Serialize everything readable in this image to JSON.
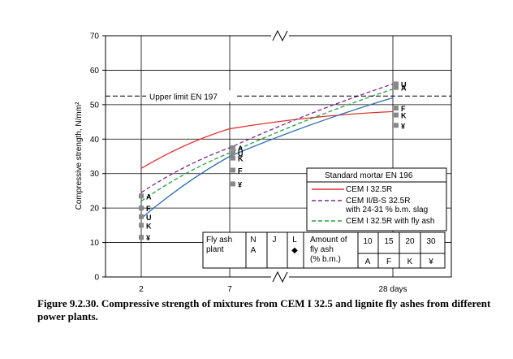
{
  "chart_data": {
    "type": "line",
    "ylabel": "Compressive strength, N/mm²",
    "ylim": [
      0,
      70
    ],
    "yticks": [
      0,
      10,
      20,
      30,
      40,
      50,
      60,
      70
    ],
    "x_ticks": [
      "2",
      "7",
      "28 days"
    ],
    "x_scale": "broken axis (time)",
    "grid": "horizontal lines at every 10 N/mm²; vertical lines at 2, 7, 28 days",
    "upper_limit": {
      "label": "Upper limit EN 197",
      "value": 52.5
    },
    "series": [
      {
        "name": "CEM I 32.5R",
        "style": "solid",
        "color": "#e03030",
        "points": [
          [
            2,
            31.5
          ],
          [
            7,
            43
          ],
          [
            28,
            48
          ]
        ]
      },
      {
        "name": "CEM II/B-S 32.5R with 24-31 % b.m. slag",
        "style": "dashed",
        "color": "#7a2a8a",
        "points": [
          [
            2,
            24.5
          ],
          [
            7,
            37.5
          ],
          [
            28,
            56
          ]
        ]
      },
      {
        "name": "CEM I 32.5R with fly ash",
        "style": "dashed",
        "color": "#22a040",
        "points": [
          [
            2,
            22
          ],
          [
            7,
            36
          ],
          [
            28,
            54.5
          ]
        ]
      },
      {
        "name": "Fly ash plant A",
        "style": "solid",
        "color": "#2f6db5",
        "points": [
          [
            2,
            17
          ],
          [
            7,
            35
          ],
          [
            28,
            52
          ]
        ]
      }
    ],
    "plant_markers_2d": [
      {
        "plant": "A",
        "value": 23.5
      },
      {
        "plant": "F",
        "value": 20
      },
      {
        "plant": "U",
        "value": 17.5
      },
      {
        "plant": "K",
        "value": 15
      },
      {
        "plant": "¥",
        "value": 11.5
      }
    ],
    "plant_markers_7d": [
      {
        "plant": "A",
        "value": 37.5
      },
      {
        "plant": "U",
        "value": 36
      },
      {
        "plant": "K",
        "value": 34.5
      },
      {
        "plant": "F",
        "value": 31
      },
      {
        "plant": "¥",
        "value": 27
      }
    ],
    "plant_markers_28d": [
      {
        "plant": "U",
        "value": 56
      },
      {
        "plant": "A",
        "value": 55
      },
      {
        "plant": "F",
        "value": 49
      },
      {
        "plant": "K",
        "value": 47
      },
      {
        "plant": "¥",
        "value": 44
      }
    ],
    "legend": {
      "title": "Standard mortar EN 196",
      "entries": [
        {
          "label": "CEM I 32.5R",
          "style": "solid",
          "color": "#e03030"
        },
        {
          "label": "CEM II/B-S 32.5R",
          "label2": "with 24-31 % b.m. slag",
          "style": "dashed",
          "color": "#7a2a8a"
        },
        {
          "label": "CEM I 32.5R with fly ash",
          "style": "dashed",
          "color": "#22a040"
        }
      ]
    },
    "key_table": {
      "plant_label": "Fly ash plant",
      "plants": [
        "N",
        "J",
        "L"
      ],
      "plant_codes": [
        "A",
        "",
        "◆"
      ],
      "amount_label_1": "Amount of",
      "amount_label_2": "fly ash",
      "amount_label_3": "(% b.m.)",
      "amounts": [
        "10",
        "15",
        "20",
        "30"
      ],
      "amount_codes": [
        "A",
        "F",
        "K",
        "¥"
      ]
    }
  },
  "caption": {
    "number": "Figure 9.2.30.",
    "text": "Compressive strength of mixtures from CEM I 32.5 and lignite fly ashes from different power plants."
  }
}
